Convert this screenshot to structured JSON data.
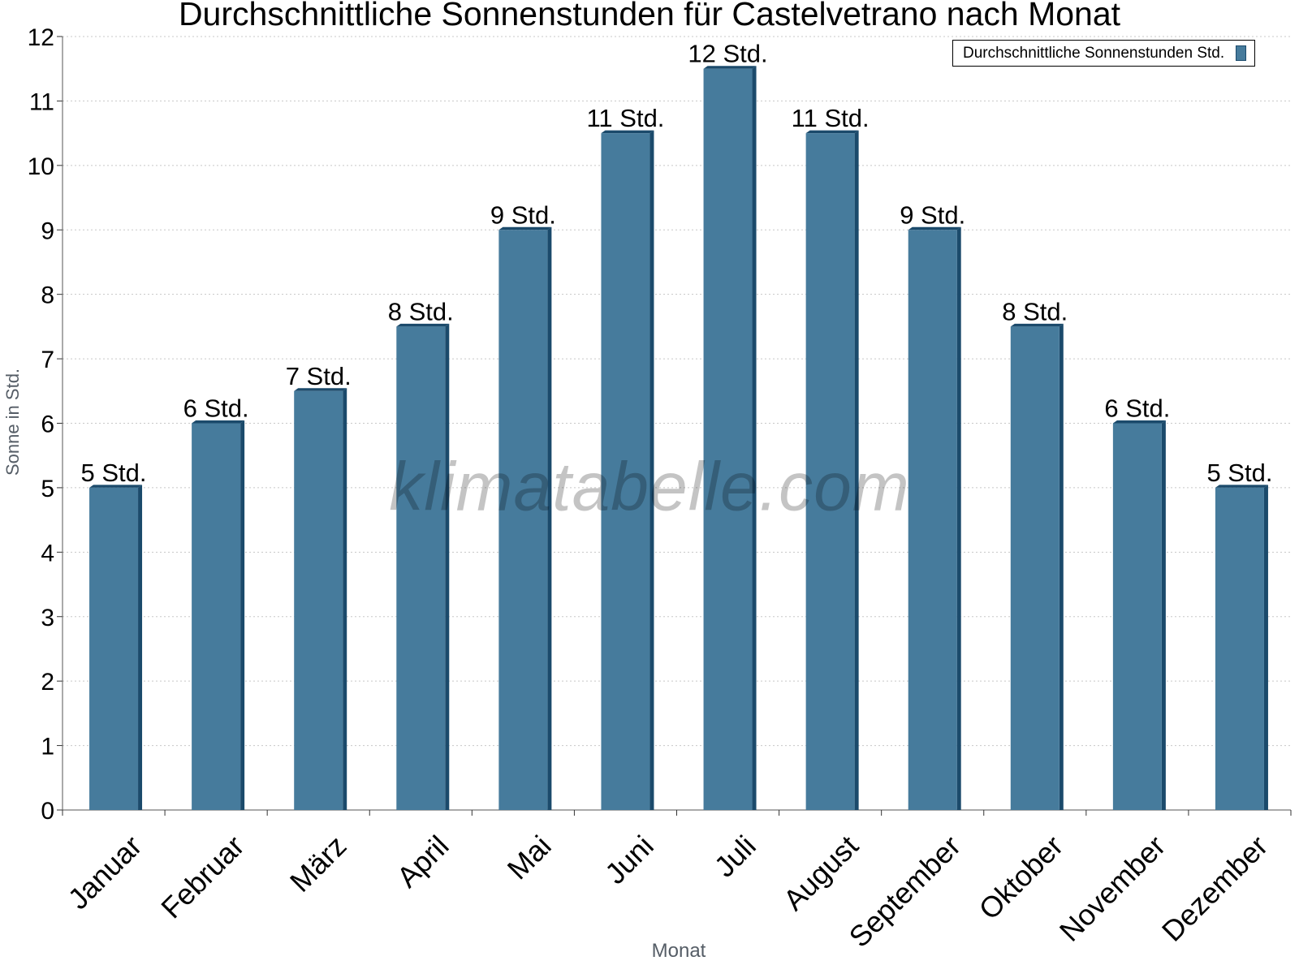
{
  "chart_data": {
    "type": "bar",
    "title": "Durchschnittliche Sonnenstunden für Castelvetrano nach Monat",
    "xlabel": "Monat",
    "ylabel": "Sonne in Std.",
    "ylim": [
      0,
      12
    ],
    "yticks": [
      0,
      1,
      2,
      3,
      4,
      5,
      6,
      7,
      8,
      9,
      10,
      11,
      12
    ],
    "grid": true,
    "legend_position": "top-right",
    "categories": [
      "Januar",
      "Februar",
      "März",
      "April",
      "Mai",
      "Juni",
      "Juli",
      "August",
      "September",
      "Oktober",
      "November",
      "Dezember"
    ],
    "series": [
      {
        "name": "Durchschnittliche Sonnenstunden Std.",
        "values": [
          5,
          6,
          6.5,
          7.5,
          9,
          10.5,
          11.5,
          10.5,
          9,
          7.5,
          6,
          5
        ],
        "labels": [
          "5 Std.",
          "6 Std.",
          "7 Std.",
          "8 Std.",
          "9 Std.",
          "11 Std.",
          "12 Std.",
          "11 Std.",
          "9 Std.",
          "8 Std.",
          "6 Std.",
          "5 Std."
        ],
        "color": "#467b9c",
        "side_color": "#1b4a6b"
      }
    ]
  },
  "watermark": "klimatabelle.com"
}
